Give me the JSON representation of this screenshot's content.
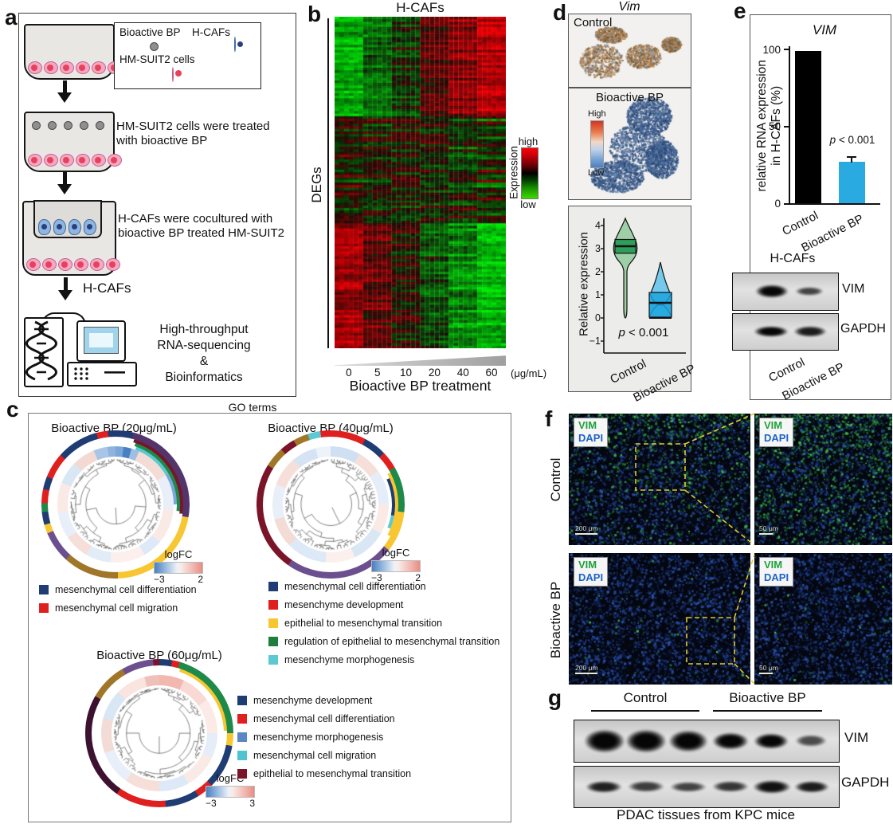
{
  "panel_a": {
    "label": "a",
    "legend": {
      "label1": "Bioactive BP",
      "label2": "H-CAFs",
      "label3": "HM-SUIT2 cells"
    },
    "step2": "HM-SUIT2 cells were treated with bioactive BP",
    "step3": "H-CAFs were cocultured with bioactive BP treated HM-SUIT2",
    "arrow_label": "H-CAFs",
    "final_lines": [
      "High-throughput",
      "RNA-sequencing",
      "&",
      "Bioinformatics"
    ]
  },
  "panel_b": {
    "label": "b",
    "title": "H-CAFs",
    "y_label": "DEGs",
    "colorbar": {
      "label": "Expression",
      "high": "high",
      "low": "low"
    },
    "x_ticks": [
      "0",
      "5",
      "10",
      "20",
      "40",
      "60"
    ],
    "x_unit": "(μg/mL)",
    "x_label": "Bioactive BP treatment"
  },
  "panel_c": {
    "label": "c",
    "title": "GO terms",
    "plots": [
      {
        "title": "Bioactive BP (20μg/mL)",
        "logfc": {
          "label": "logFC",
          "min": "−3",
          "max": "2"
        },
        "legend": [
          {
            "color": "#1f3c73",
            "label": "mesenchymal cell differentiation"
          },
          {
            "color": "#e01f1f",
            "label": "mesenchymal cell migration"
          }
        ]
      },
      {
        "title": "Bioactive BP (40μg/mL)",
        "logfc": {
          "label": "logFC",
          "min": "−3",
          "max": "2"
        },
        "legend": [
          {
            "color": "#1f3c73",
            "label": "mesenchymal cell differentiation"
          },
          {
            "color": "#e01f1f",
            "label": "mesenchyme development"
          },
          {
            "color": "#f7c631",
            "label": "epithelial to mesenchymal transition"
          },
          {
            "color": "#1e7e3c",
            "label": "regulation of epithelial to mesenchymal transition"
          },
          {
            "color": "#5bc8d2",
            "label": "mesenchyme morphogenesis"
          }
        ]
      },
      {
        "title": "Bioactive BP (60μg/mL)",
        "logfc": {
          "label": "logFC",
          "min": "−3",
          "max": "3"
        },
        "legend": [
          {
            "color": "#1f3c73",
            "label": "mesenchyme development"
          },
          {
            "color": "#e01f1f",
            "label": "mesenchymal cell differentiation"
          },
          {
            "color": "#5b87c5",
            "label": "mesenchyme morphogenesis"
          },
          {
            "color": "#4fc3cf",
            "label": "mesenchymal cell migration"
          },
          {
            "color": "#7a1428",
            "label": "epithelial to mesenchymal transition"
          }
        ]
      }
    ]
  },
  "panel_d": {
    "label": "d",
    "title": "Vim",
    "map1_label": "Control",
    "map2_label": "Bioactive BP",
    "scale": {
      "high": "High",
      "low": "Low"
    },
    "violin": {
      "y_label": "Relative expression",
      "y_ticks": [
        "4",
        "3",
        "2",
        "1",
        "0",
        "−1"
      ],
      "p_italic": "p",
      "p_rest": " < 0.001",
      "x_labels": [
        "Control",
        "Bioactive BP"
      ]
    }
  },
  "panel_e": {
    "label": "e",
    "title": "VIM",
    "y_label_line1": "relative RNA expression",
    "y_label_line2": "in H-CAFs (%)",
    "y_ticks": [
      "100",
      "50",
      "0"
    ],
    "p_italic": "p",
    "p_rest": " < 0.001",
    "x_labels": [
      "Control",
      "Bioactive BP"
    ],
    "blot": {
      "title": "H-CAFs",
      "rows": [
        "VIM",
        "GAPDH"
      ],
      "x_labels": [
        "Control",
        "Bioactive BP"
      ]
    }
  },
  "panel_f": {
    "label": "f",
    "stains": {
      "vim": "VIM",
      "dapi": "DAPI"
    },
    "rows": [
      {
        "row_label": "Control",
        "scale_large": "200 μm",
        "scale_small": "50 μm"
      },
      {
        "row_label": "Bioactive BP",
        "scale_large": "200 μm",
        "scale_small": "50 μm"
      }
    ]
  },
  "panel_g": {
    "label": "g",
    "groups": [
      "Control",
      "Bioactive BP"
    ],
    "rows": [
      "VIM",
      "GAPDH"
    ],
    "caption": "PDAC tissues from KPC mice"
  },
  "chart_data": [
    {
      "type": "heatmap",
      "panel": "b",
      "title": "H-CAFs",
      "columns": [
        "0",
        "5",
        "10",
        "20",
        "40",
        "60"
      ],
      "column_unit": "μg/mL",
      "xlabel": "Bioactive BP treatment",
      "ylabel": "DEGs",
      "colorbar": {
        "label": "Expression",
        "high_color": "#e50000",
        "mid_color": "#000000",
        "low_color": "#3fd400"
      },
      "summary": "Hierarchically clustered DEGs in H-CAFs across increasing bioactive BP doses; an upper gene cluster shifts from low (green) at 0 μg/mL to high (red) at 60 μg/mL while a lower cluster shifts from high to low."
    },
    {
      "type": "violin",
      "panel": "d",
      "gene": "Vim",
      "ylabel": "Relative expression",
      "ylim": [
        -1,
        4.5
      ],
      "yticks": [
        -1,
        0,
        1,
        2,
        3,
        4
      ],
      "categories": [
        "Control",
        "Bioactive BP"
      ],
      "series": [
        {
          "name": "Control",
          "color": "#2e9e5b",
          "median": 3.1,
          "q1": 2.8,
          "q3": 3.4,
          "whisker_min": 0,
          "whisker_max": 4.3
        },
        {
          "name": "Bioactive BP",
          "color": "#29abe2",
          "median": 0.65,
          "q1": 0.05,
          "q3": 1.1,
          "whisker_min": 0,
          "whisker_max": 2.4
        }
      ],
      "p_value": "p < 0.001"
    },
    {
      "type": "bar",
      "panel": "e",
      "title": "VIM",
      "categories": [
        "Control",
        "Bioactive BP"
      ],
      "values": [
        99,
        27
      ],
      "errors": [
        0,
        2
      ],
      "colors": [
        "#000000",
        "#29abe2"
      ],
      "ylabel": "relative RNA expression in H-CAFs (%)",
      "ylim": [
        0,
        100
      ],
      "yticks": [
        0,
        50,
        100
      ],
      "p_value": "p < 0.001"
    }
  ]
}
